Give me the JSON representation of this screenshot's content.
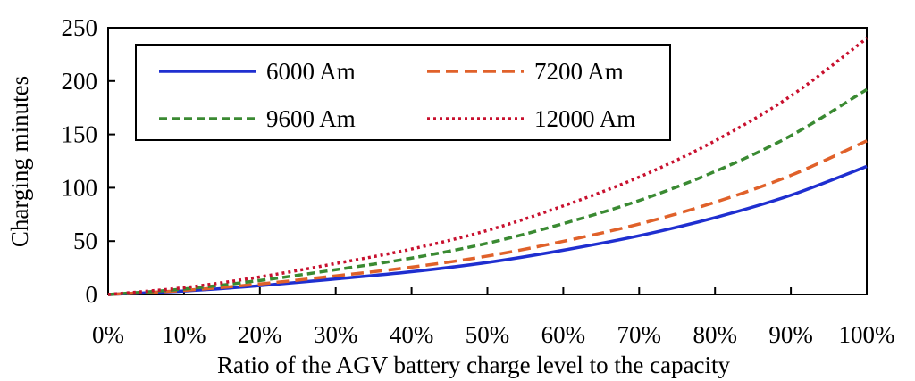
{
  "chart_data": {
    "type": "line",
    "title": "",
    "xlabel": "Ratio of the AGV battery charge level to the capacity",
    "ylabel": "Charging minutes",
    "x": [
      0,
      0.1,
      0.2,
      0.3,
      0.4,
      0.5,
      0.6,
      0.7,
      0.8,
      0.9,
      1.0
    ],
    "xlim": [
      0,
      1
    ],
    "ylim": [
      0,
      250
    ],
    "x_tick_labels": [
      "0%",
      "10%",
      "20%",
      "30%",
      "40%",
      "50%",
      "60%",
      "70%",
      "80%",
      "90%",
      "100%"
    ],
    "y_tick_labels": [
      "0",
      "50",
      "100",
      "150",
      "200",
      "250"
    ],
    "y_ticks": [
      0,
      50,
      100,
      150,
      200,
      250
    ],
    "grid": false,
    "legend_position": "top-left",
    "series": [
      {
        "name": "6000 Am",
        "color": "#1f2fd0",
        "style": "solid",
        "values": [
          0,
          3.2,
          8.2,
          14.5,
          21.3,
          30.0,
          41.5,
          55.0,
          72.0,
          93.0,
          120.0
        ]
      },
      {
        "name": "7200 Am",
        "color": "#e0612a",
        "style": "dashed",
        "values": [
          0,
          3.8,
          9.8,
          17.4,
          25.6,
          36.0,
          49.8,
          66.0,
          86.4,
          111.6,
          144.0
        ]
      },
      {
        "name": "9600 Am",
        "color": "#3a8a32",
        "style": "short-dashed",
        "values": [
          0,
          5.1,
          13.1,
          23.2,
          34.1,
          48.0,
          66.4,
          88.0,
          115.2,
          148.8,
          192.0
        ]
      },
      {
        "name": "12000 Am",
        "color": "#c8102e",
        "style": "dotted",
        "values": [
          0,
          6.4,
          16.4,
          29.0,
          42.6,
          60.0,
          83.0,
          110.0,
          144.0,
          186.0,
          240.0
        ]
      }
    ]
  }
}
